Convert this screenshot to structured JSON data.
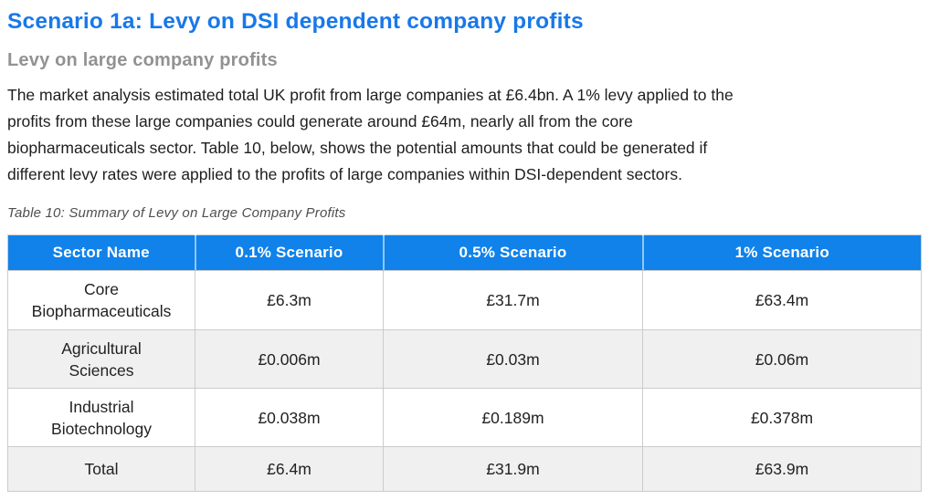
{
  "heading": "Scenario 1a: Levy on DSI dependent company profits",
  "subheading": "Levy on large company profits",
  "paragraph": "The market analysis estimated total UK profit from large companies at £6.4bn. A 1% levy applied to the\nprofits from these large companies could generate around £64m, nearly all from the core\nbiopharmaceuticals sector. Table 10, below, shows the potential amounts that could be generated if\ndifferent levy rates were applied to the profits of large companies within DSI-dependent sectors.",
  "table": {
    "caption": "Table 10: Summary of Levy on Large Company Profits",
    "headers": [
      "Sector Name",
      "0.1% Scenario",
      "0.5% Scenario",
      "1% Scenario"
    ],
    "rows": [
      {
        "sector": "Core\nBiopharmaceuticals",
        "cells": [
          "£6.3m",
          "£31.7m",
          "£63.4m"
        ]
      },
      {
        "sector": "Agricultural\nSciences",
        "cells": [
          "£0.006m",
          "£0.03m",
          "£0.06m"
        ]
      },
      {
        "sector": "Industrial\nBiotechnology",
        "cells": [
          "£0.038m",
          "£0.189m",
          "£0.378m"
        ]
      },
      {
        "sector": "Total",
        "cells": [
          "£6.4m",
          "£31.9m",
          "£63.9m"
        ]
      }
    ]
  },
  "colors": {
    "accent_blue": "#1878e9",
    "header_bg": "#1082e9",
    "header_text": "#ffffff",
    "subheading_gray": "#929292",
    "body_text": "#1e1e1e",
    "caption_gray": "#4f4f4f",
    "row_alt_bg": "#f0f0f0",
    "border_gray": "#cccccc"
  }
}
